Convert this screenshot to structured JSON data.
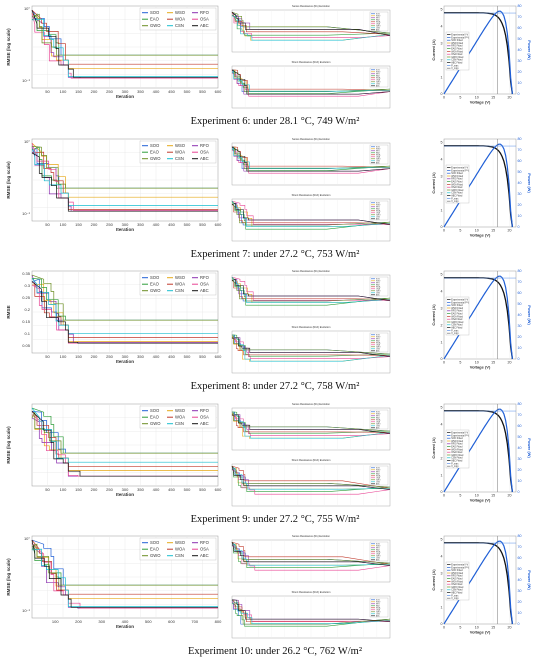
{
  "experiments": [
    {
      "caption": "Experiment 6: under 28.1 °C, 749 W/m²",
      "rmse": {
        "ylabel": "RMSE (log scale)",
        "xlabel": "Iteration",
        "x_ticks": [
          "50",
          "100",
          "150",
          "200",
          "250",
          "300",
          "350",
          "400",
          "450",
          "500",
          "550",
          "600"
        ],
        "y_ticks": [
          "10°",
          "10⁻¹"
        ],
        "xmax": 600
      },
      "rs_title": "Series Resistance (Rs) Evolution",
      "rsh_title": "Shunt Resistance (Rsh) Evolution",
      "iv": {
        "xlabel": "Voltage (V)",
        "ylabel": "Current (A)",
        "y2label": "Power (W)"
      }
    },
    {
      "caption": "Experiment 7: under 27.2 °C, 753 W/m²",
      "rmse": {
        "ylabel": "RMSE (log scale)",
        "xlabel": "Iteration",
        "x_ticks": [
          "50",
          "100",
          "150",
          "200",
          "250",
          "300",
          "350",
          "400",
          "450",
          "500",
          "550",
          "600"
        ],
        "y_ticks": [
          "10°",
          "10⁻¹"
        ],
        "xmax": 600
      },
      "rs_title": "Series Resistance (Rs) Evolution",
      "rsh_title": "Shunt Resistance (Rsh) Evolution",
      "iv": {
        "xlabel": "Voltage (V)",
        "ylabel": "Current (A)",
        "y2label": "Power (W)"
      }
    },
    {
      "caption": "Experiment 8: under 27.2 °C, 758 W/m²",
      "rmse": {
        "ylabel": "RMSE",
        "xlabel": "Iteration",
        "x_ticks": [
          "50",
          "100",
          "150",
          "200",
          "250",
          "300",
          "350",
          "400",
          "450",
          "500",
          "550",
          "600"
        ],
        "y_ticks": [
          "0.35",
          "0.3",
          "0.25",
          "0.2",
          "0.15",
          "0.1",
          "0.05"
        ],
        "xmax": 600
      },
      "rs_title": "Series Resistance (Rs) Evolution",
      "rsh_title": "Shunt Resistance (Rsh) Evolution",
      "iv": {
        "xlabel": "Voltage (V)",
        "ylabel": "Current (A)",
        "y2label": "Power (W)"
      }
    },
    {
      "caption": "Experiment 9: under 27.2 °C, 755 W/m²",
      "rmse": {
        "ylabel": "RMSE (log scale)",
        "xlabel": "Iteration",
        "x_ticks": [
          "50",
          "100",
          "150",
          "200",
          "250",
          "300",
          "350",
          "400",
          "450",
          "500",
          "550",
          "600"
        ],
        "y_ticks": [],
        "xmax": 600
      },
      "rs_title": "Series Resistance (Rs) Evolution",
      "rsh_title": "Shunt Resistance (Rsh) Evolution",
      "iv": {
        "xlabel": "Voltage (V)",
        "ylabel": "Current (A)",
        "y2label": "Power (W)"
      }
    },
    {
      "caption": "Experiment 10: under 26.2 °C, 762 W/m²",
      "rmse": {
        "ylabel": "RMSE (log scale)",
        "xlabel": "Iteration",
        "x_ticks": [
          "100",
          "200",
          "300",
          "400",
          "500",
          "600",
          "700",
          "800"
        ],
        "y_ticks": [
          "10°",
          "10⁻¹"
        ],
        "xmax": 800
      },
      "rs_title": "Series Resistance (Rs) Evolution",
      "rsh_title": "Shunt Resistance (Rsh) Evolution",
      "iv": {
        "xlabel": "Voltage (V)",
        "ylabel": "Current (A)",
        "y2label": "Power (W)"
      }
    }
  ],
  "legend_algorithms": [
    {
      "name": "SOO",
      "color": "#1f5fd6"
    },
    {
      "name": "WSO",
      "color": "#e6a817"
    },
    {
      "name": "RFO",
      "color": "#8b2fb0"
    },
    {
      "name": "EAO",
      "color": "#2e9d3a"
    },
    {
      "name": "WOA",
      "color": "#c0392b"
    },
    {
      "name": "OSA",
      "color": "#e84393"
    },
    {
      "name": "GWO",
      "color": "#6b8e23"
    },
    {
      "name": "CSN",
      "color": "#17becf"
    },
    {
      "name": "ABC",
      "color": "#111111"
    }
  ],
  "iv_legend": [
    "Experimental I-V",
    "Experimental P-V",
    "SOO Fitted",
    "WSO Fitted",
    "RFO Fitted",
    "EAO Fitted",
    "WOA Fitted",
    "OSA Fitted",
    "GWO Fitted",
    "CSN Fitted",
    "ABC Fitted",
    "P_max",
    "V_mpp"
  ],
  "iv_axes": {
    "v_ticks": [
      "0",
      "5",
      "10",
      "15",
      "20"
    ],
    "i_ticks": [
      "0",
      "1",
      "2",
      "3",
      "4",
      "5"
    ],
    "p_ticks": [
      "0",
      "10",
      "20",
      "30",
      "40",
      "50",
      "60",
      "70",
      "80"
    ],
    "v_max": 22,
    "i_max": 5.2,
    "p_max": 80
  },
  "chart_data": [
    {
      "type": "line",
      "title": "",
      "xlabel": "Iteration",
      "ylabel": "RMSE (log scale)",
      "series": []
    },
    {
      "type": "line",
      "title": "",
      "xlabel": "Iteration",
      "ylabel": "RMSE (log scale)",
      "series": []
    },
    {
      "type": "line",
      "title": "",
      "xlabel": "Iteration",
      "ylabel": "RMSE",
      "series": []
    },
    {
      "type": "line",
      "title": "",
      "xlabel": "Iteration",
      "ylabel": "RMSE (log scale)",
      "series": []
    },
    {
      "type": "line",
      "title": "",
      "xlabel": "Iteration",
      "ylabel": "RMSE (log scale)",
      "series": []
    }
  ]
}
